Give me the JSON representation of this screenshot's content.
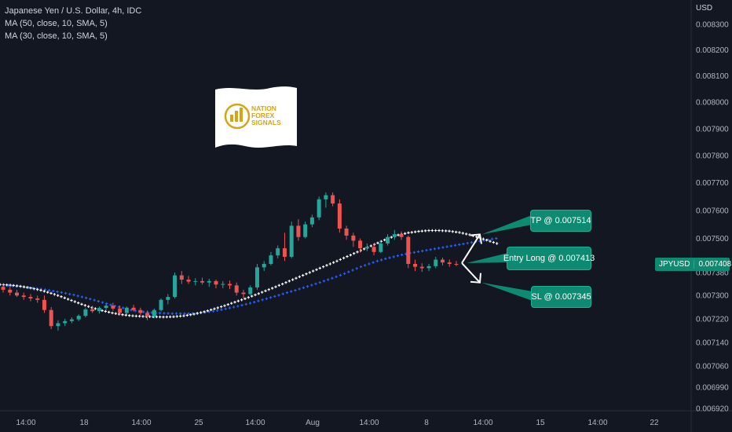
{
  "legend": {
    "title": "Japanese Yen / U.S. Dollar, 4h, IDC",
    "ma1": "MA (50, close, 10, SMA, 5)",
    "ma2": "MA (30, close, 10, SMA, 5)"
  },
  "axis": {
    "currency": "USD",
    "price_ticks": [
      "0.008300",
      "0.008200",
      "0.008100",
      "0.008000",
      "0.007900",
      "0.007800",
      "0.007700",
      "0.007600",
      "0.007500",
      "0.007380",
      "0.007300",
      "0.007220",
      "0.007140",
      "0.007060",
      "0.006990",
      "0.006920"
    ],
    "time_ticks": [
      "14:00",
      "18",
      "14:00",
      "25",
      "14:00",
      "Aug",
      "14:00",
      "8",
      "14:00",
      "15",
      "14:00",
      "22"
    ]
  },
  "price_tag": {
    "symbol": "JPYUSD",
    "value": "0.007408"
  },
  "callouts": {
    "tp": "TP @ 0.007514",
    "entry": "Entry Long @ 0.007413",
    "sl": "SL @ 0.007345"
  },
  "logo": {
    "text": [
      "NATION",
      "FOREX",
      "SIGNALS"
    ]
  },
  "colors": {
    "background": "#131722",
    "up": "#26a69a",
    "down": "#ef5350",
    "ma_slow": "#2962ff",
    "ma_fast": "#ffffff",
    "callout": "#0e8a73"
  },
  "chart_data": {
    "type": "candlestick",
    "symbol": "JPYUSD",
    "timeframe": "4h",
    "ylim": [
      0.00692,
      0.00834
    ],
    "y_scale": "log",
    "grid": false,
    "candles": [
      [
        0.00733,
        0.00734,
        0.00731,
        0.00732
      ],
      [
        0.00732,
        0.00733,
        0.0073,
        0.00731
      ],
      [
        0.00731,
        0.00732,
        0.007295,
        0.0073
      ],
      [
        0.0073,
        0.00731,
        0.007285,
        0.007295
      ],
      [
        0.007295,
        0.007305,
        0.00728,
        0.00729
      ],
      [
        0.00729,
        0.0073,
        0.007275,
        0.007285
      ],
      [
        0.007285,
        0.0073,
        0.00724,
        0.00725
      ],
      [
        0.00725,
        0.00726,
        0.007185,
        0.007195
      ],
      [
        0.007195,
        0.007215,
        0.00718,
        0.007205
      ],
      [
        0.007205,
        0.00722,
        0.007195,
        0.007212
      ],
      [
        0.007212,
        0.007225,
        0.007205,
        0.007218
      ],
      [
        0.007218,
        0.007235,
        0.007212,
        0.00723
      ],
      [
        0.00723,
        0.007258,
        0.007225,
        0.007252
      ],
      [
        0.007252,
        0.007265,
        0.00724,
        0.007246
      ],
      [
        0.007246,
        0.007262,
        0.007238,
        0.007257
      ],
      [
        0.007257,
        0.00727,
        0.00725,
        0.007265
      ],
      [
        0.007265,
        0.007275,
        0.007248,
        0.007255
      ],
      [
        0.007255,
        0.007265,
        0.007235,
        0.00724
      ],
      [
        0.00724,
        0.007262,
        0.007235,
        0.007258
      ],
      [
        0.007258,
        0.007268,
        0.007245,
        0.00725
      ],
      [
        0.00725,
        0.007258,
        0.007232,
        0.00724
      ],
      [
        0.00724,
        0.007248,
        0.007215,
        0.007228
      ],
      [
        0.007228,
        0.007255,
        0.007222,
        0.00725
      ],
      [
        0.00725,
        0.00729,
        0.007245,
        0.007285
      ],
      [
        0.007285,
        0.007305,
        0.00727,
        0.007295
      ],
      [
        0.007295,
        0.00738,
        0.00729,
        0.00737
      ],
      [
        0.00737,
        0.007385,
        0.00734,
        0.007355
      ],
      [
        0.007355,
        0.007368,
        0.00734,
        0.007348
      ],
      [
        0.007348,
        0.00736,
        0.007335,
        0.00735
      ],
      [
        0.00735,
        0.007362,
        0.007338,
        0.007345
      ],
      [
        0.007345,
        0.007358,
        0.00733,
        0.00735
      ],
      [
        0.00735,
        0.007355,
        0.007325,
        0.007338
      ],
      [
        0.007338,
        0.00735,
        0.007325,
        0.00734
      ],
      [
        0.00734,
        0.007352,
        0.007322,
        0.007335
      ],
      [
        0.007335,
        0.007345,
        0.0073,
        0.00731
      ],
      [
        0.00731,
        0.00732,
        0.00729,
        0.007305
      ],
      [
        0.007305,
        0.007335,
        0.0073,
        0.007328
      ],
      [
        0.007328,
        0.00741,
        0.00732,
        0.007398
      ],
      [
        0.007398,
        0.00742,
        0.007385,
        0.00741
      ],
      [
        0.00741,
        0.007452,
        0.007405,
        0.00744
      ],
      [
        0.00744,
        0.007475,
        0.00743,
        0.007465
      ],
      [
        0.007465,
        0.00752,
        0.00742,
        0.007435
      ],
      [
        0.007435,
        0.00756,
        0.00743,
        0.007545
      ],
      [
        0.007545,
        0.007568,
        0.007492,
        0.007505
      ],
      [
        0.007505,
        0.00756,
        0.0075,
        0.00755
      ],
      [
        0.00755,
        0.007585,
        0.00754,
        0.007575
      ],
      [
        0.007575,
        0.00765,
        0.007565,
        0.00764
      ],
      [
        0.00764,
        0.007665,
        0.00761,
        0.007655
      ],
      [
        0.007655,
        0.007665,
        0.007615,
        0.007625
      ],
      [
        0.007625,
        0.00764,
        0.00752,
        0.007535
      ],
      [
        0.007535,
        0.007545,
        0.007495,
        0.00751
      ],
      [
        0.00751,
        0.00752,
        0.00747,
        0.007492
      ],
      [
        0.007492,
        0.0075,
        0.00745,
        0.007465
      ],
      [
        0.007465,
        0.007482,
        0.007455,
        0.00747
      ],
      [
        0.00747,
        0.007482,
        0.00744,
        0.007452
      ],
      [
        0.007452,
        0.00749,
        0.007448,
        0.007482
      ],
      [
        0.007482,
        0.007515,
        0.007475,
        0.007505
      ],
      [
        0.007505,
        0.00753,
        0.007495,
        0.007515
      ],
      [
        0.007515,
        0.007525,
        0.007495,
        0.007505
      ],
      [
        0.007505,
        0.00751,
        0.007395,
        0.00741
      ],
      [
        0.00741,
        0.007425,
        0.007385,
        0.0074
      ],
      [
        0.0074,
        0.007412,
        0.007382,
        0.007395
      ],
      [
        0.007395,
        0.00741,
        0.007385,
        0.007402
      ],
      [
        0.007402,
        0.007435,
        0.007395,
        0.007425
      ],
      [
        0.007425,
        0.007432,
        0.007405,
        0.007415
      ],
      [
        0.007415,
        0.007425,
        0.0074,
        0.00741
      ],
      [
        0.00741,
        0.00742,
        0.007402,
        0.007408
      ]
    ],
    "ma_slow": [
      0.007338,
      0.007335,
      0.007332,
      0.007329,
      0.007326,
      0.007322,
      0.007318,
      0.007313,
      0.007308,
      0.007302,
      0.007295,
      0.007288,
      0.00728,
      0.007272,
      0.007264,
      0.007257,
      0.00725,
      0.007245,
      0.007242,
      0.00724,
      0.007239,
      0.007238,
      0.007238,
      0.007238,
      0.007239,
      0.007242,
      0.007246,
      0.007251,
      0.007257,
      0.007263,
      0.00727,
      0.007277,
      0.007285,
      0.007293,
      0.007301,
      0.00731,
      0.007318,
      0.007327,
      0.007336,
      0.007345,
      0.007355,
      0.007365,
      0.007376,
      0.007388,
      0.0074,
      0.00741,
      0.00742,
      0.007428,
      0.007435,
      0.007442,
      0.007448,
      0.007453,
      0.007458,
      0.007463,
      0.007468,
      0.007473,
      0.007478,
      0.007483,
      0.007488,
      0.007493,
      0.007498,
      0.007502
    ],
    "ma_fast": [
      0.007338,
      0.007336,
      0.007332,
      0.007326,
      0.007318,
      0.007308,
      0.007296,
      0.007283,
      0.00727,
      0.007258,
      0.007248,
      0.00724,
      0.007234,
      0.00723,
      0.007228,
      0.007227,
      0.007226,
      0.007227,
      0.00723,
      0.007236,
      0.007244,
      0.007254,
      0.007265,
      0.007277,
      0.007289,
      0.007302,
      0.007316,
      0.00733,
      0.007345,
      0.00736,
      0.007375,
      0.00739,
      0.007405,
      0.00742,
      0.007436,
      0.007452,
      0.007468,
      0.007484,
      0.0075,
      0.007512,
      0.00752,
      0.007525,
      0.007528,
      0.007528,
      0.007526,
      0.007521,
      0.007513,
      0.007502,
      0.00749,
      0.007478
    ],
    "arrows": {
      "entry": 0.007413,
      "tp": 0.007514,
      "sl": 0.007345
    }
  }
}
